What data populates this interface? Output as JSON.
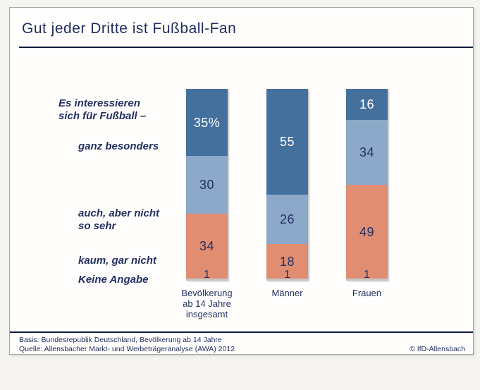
{
  "page": {
    "title": "Gut jeder Dritte ist Fußball-Fan",
    "copyright": "© IfD-Allensbach"
  },
  "annotations": {
    "intro_line1": "Es interessieren",
    "intro_line2": "sich für Fußball –",
    "label_ganz_besonders": "ganz besonders",
    "label_auch_line1": "auch, aber nicht",
    "label_auch_line2": "so sehr",
    "label_kaum": "kaum, gar nicht",
    "label_keine_angabe": "Keine Angabe"
  },
  "footer": {
    "basis": "Basis: Bundesrepublik Deutschland, Bevölkerung ab 14 Jahre",
    "quelle": "Quelle: Allensbacher Markt- und Werbeträgeranalyse (AWA) 2012"
  },
  "colors": {
    "navy_text": "#233060",
    "rule_navy": "#111b3e",
    "segment_ganz_besonders": "#44709E",
    "segment_auch_aber_nicht": "#8CA9C9",
    "segment_kaum_gar_nicht": "#E08D72",
    "segment_keine_angabe": "#C6C6C6"
  },
  "chart_data": {
    "type": "bar",
    "stacked": true,
    "unit": "percent",
    "title": "Gut jeder Dritte ist Fußball-Fan",
    "xlabel": "",
    "ylabel": "",
    "ylim": [
      0,
      100
    ],
    "grid": false,
    "legend": "none (labels placed left of first bar)",
    "categories": [
      "Bevölkerung ab 14 Jahre insgesamt",
      "Männer",
      "Frauen"
    ],
    "category_label_lines": [
      [
        "Bevölkerung",
        "ab 14 Jahre",
        "insgesamt"
      ],
      [
        "Männer"
      ],
      [
        "Frauen"
      ]
    ],
    "series": [
      {
        "name": "ganz besonders",
        "color": "#44709E",
        "label_color": "#FFFFFF",
        "values": [
          35,
          55,
          16
        ],
        "display_labels": [
          "35%",
          "55",
          "16"
        ]
      },
      {
        "name": "auch, aber nicht so sehr",
        "color": "#8CA9C9",
        "label_color": "#233060",
        "values": [
          30,
          26,
          34
        ],
        "display_labels": [
          "30",
          "26",
          "34"
        ]
      },
      {
        "name": "kaum, gar nicht",
        "color": "#E08D72",
        "label_color": "#233060",
        "values": [
          34,
          18,
          49
        ],
        "display_labels": [
          "34",
          "18",
          "49"
        ]
      },
      {
        "name": "Keine Angabe",
        "color": "#C6C6C6",
        "label_color": "#233060",
        "values": [
          1,
          1,
          1
        ],
        "display_labels": [
          "1",
          "1",
          "1"
        ]
      }
    ]
  }
}
